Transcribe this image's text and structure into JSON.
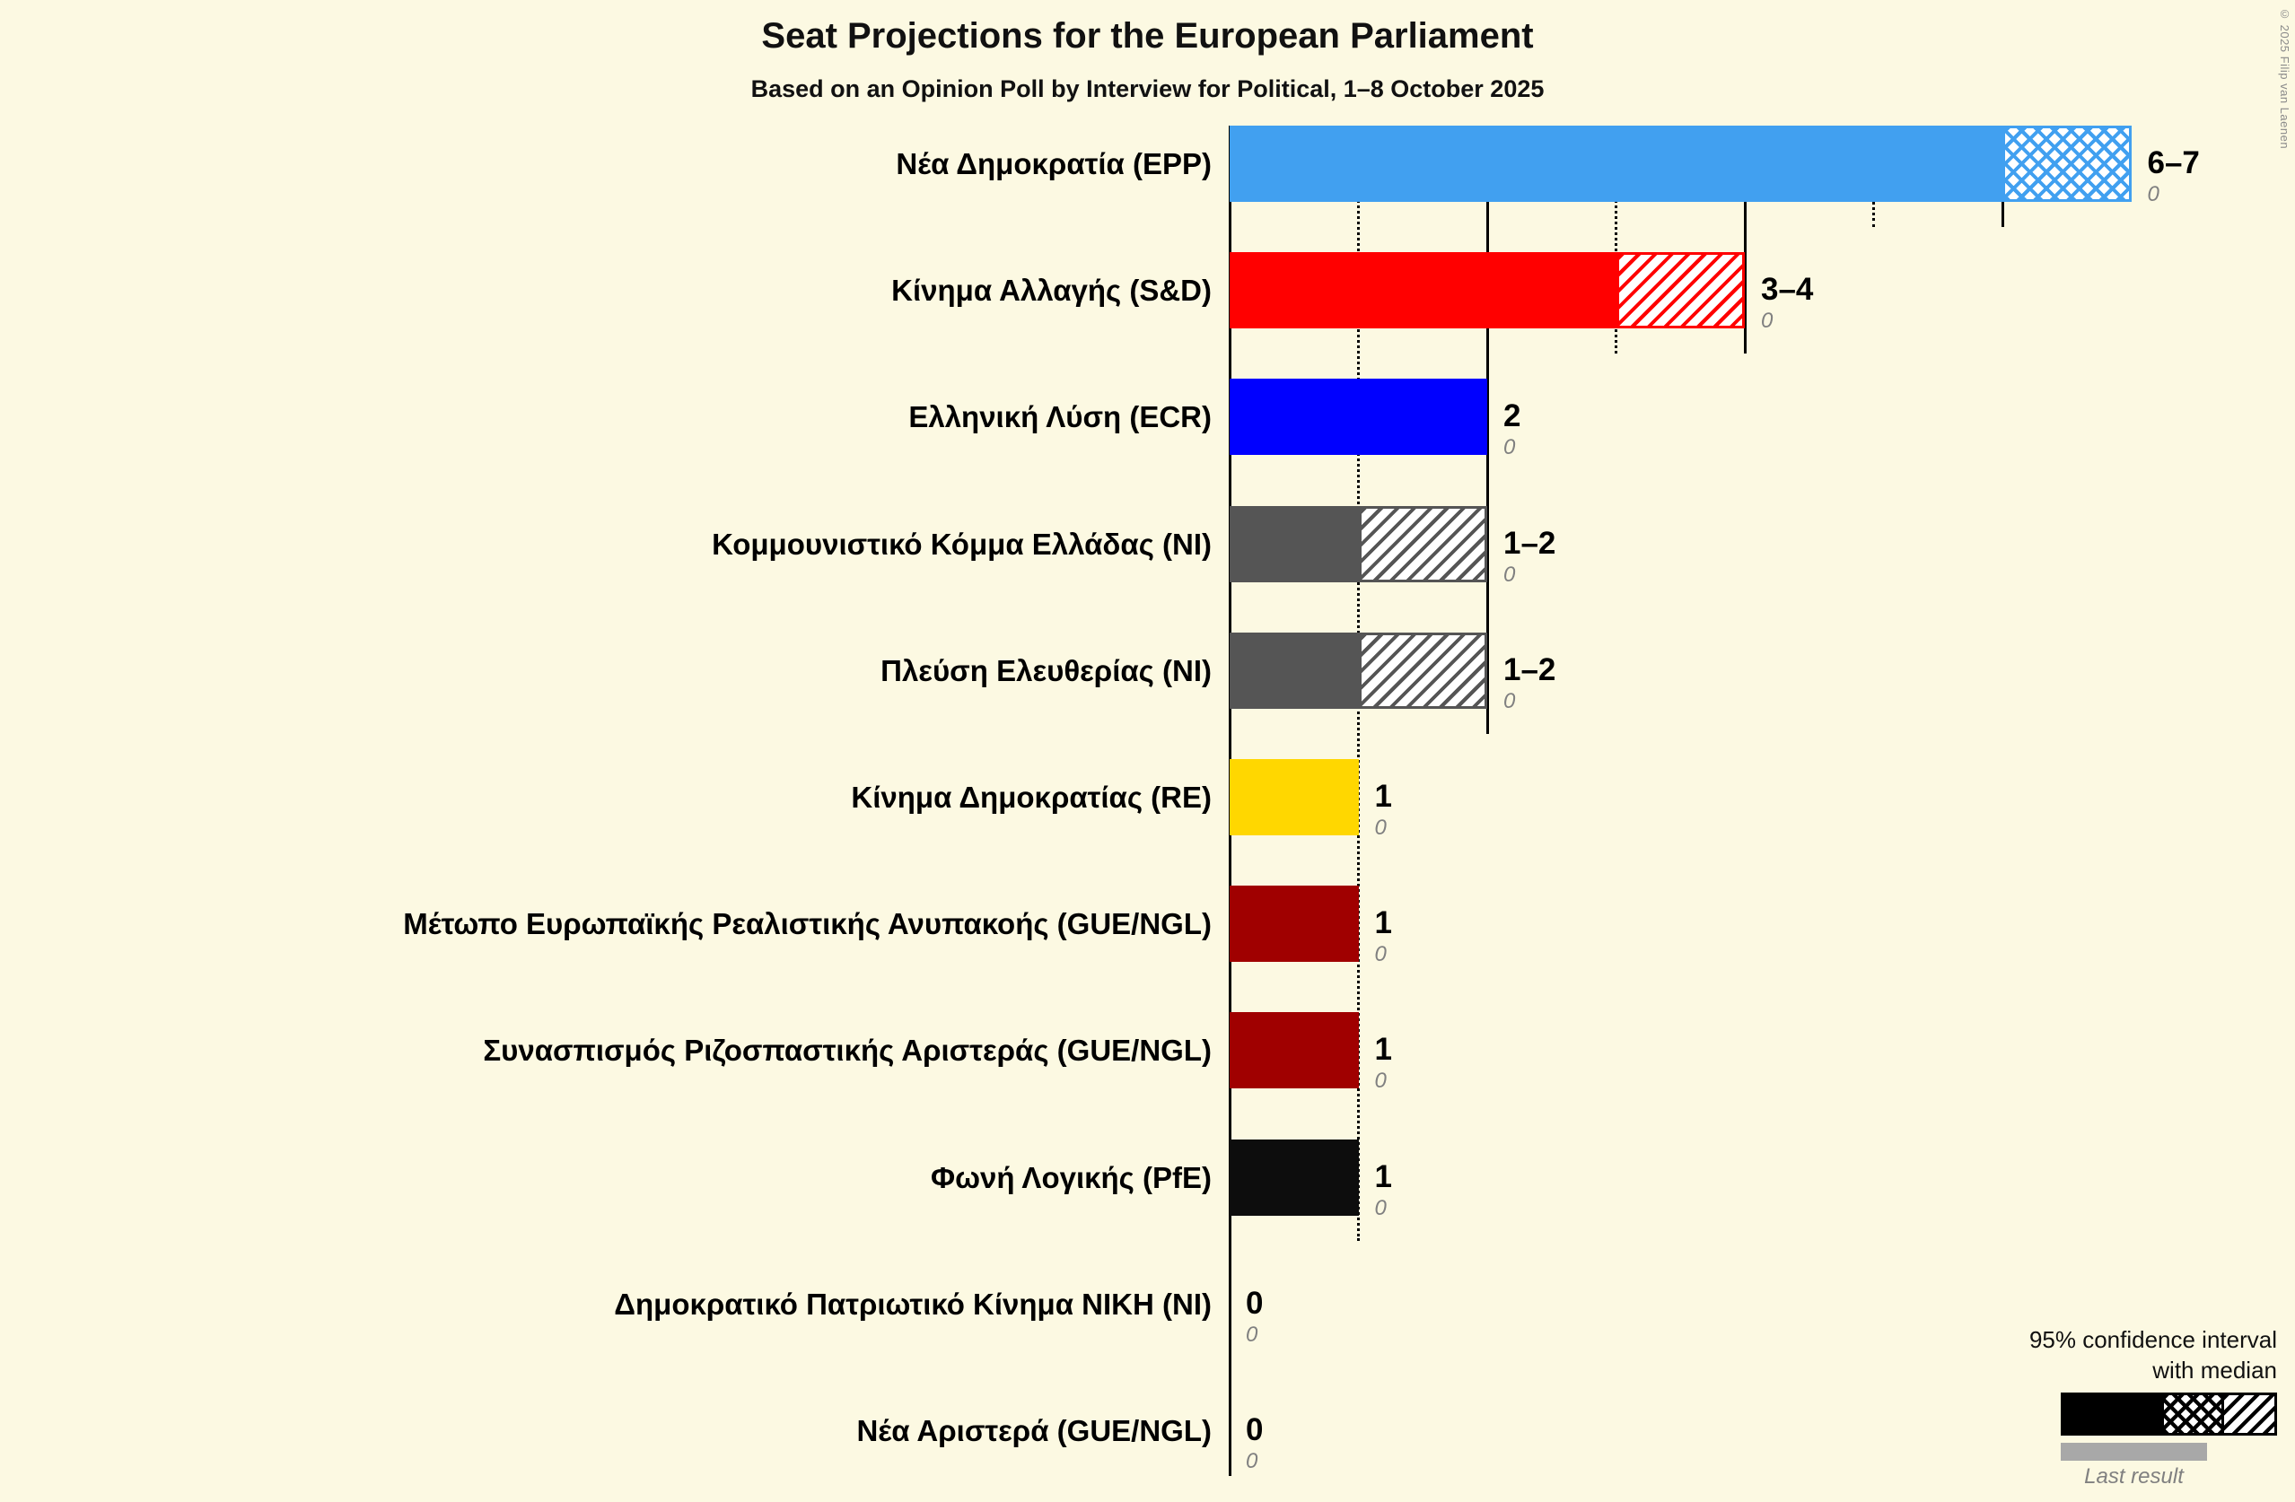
{
  "header": {
    "title": "Seat Projections for the European Parliament",
    "subtitle": "Based on an Opinion Poll by Interview for Political, 1–8 October 2025",
    "copyright": "© 2025 Filip van Laenen"
  },
  "legend": {
    "ci_line1": "95% confidence interval",
    "ci_line2": "with median",
    "last_result": "Last result"
  },
  "chart_data": {
    "type": "bar",
    "orientation": "horizontal",
    "title": "Seat Projections for the European Parliament",
    "x_unit": "seats",
    "x_range": [
      0,
      7
    ],
    "gridlines": {
      "dotted_at": [
        1,
        3,
        5
      ],
      "solid_at": [
        2,
        4,
        6
      ]
    },
    "parties": [
      {
        "name": "Νέα Δημοκρατία (EPP)",
        "color": "#41A0F0",
        "ci_low": 6,
        "median": 7,
        "ci_high": 7,
        "seats_label": "6–7",
        "last_result": "0"
      },
      {
        "name": "Κίνημα Αλλαγής (S&D)",
        "color": "#FF0000",
        "ci_low": 3,
        "median": 3,
        "ci_high": 4,
        "seats_label": "3–4",
        "last_result": "0"
      },
      {
        "name": "Ελληνική Λύση (ECR)",
        "color": "#0000FF",
        "ci_low": 2,
        "median": 2,
        "ci_high": 2,
        "seats_label": "2",
        "last_result": "0"
      },
      {
        "name": "Κομμουνιστικό Κόμμα Ελλάδας (NI)",
        "color": "#555555",
        "ci_low": 1,
        "median": 1,
        "ci_high": 2,
        "seats_label": "1–2",
        "last_result": "0"
      },
      {
        "name": "Πλεύση Ελευθερίας (NI)",
        "color": "#555555",
        "ci_low": 1,
        "median": 1,
        "ci_high": 2,
        "seats_label": "1–2",
        "last_result": "0"
      },
      {
        "name": "Κίνημα Δημοκρατίας (RE)",
        "color": "#FFD700",
        "ci_low": 1,
        "median": 1,
        "ci_high": 1,
        "seats_label": "1",
        "last_result": "0"
      },
      {
        "name": "Μέτωπο Ευρωπαϊκής Ρεαλιστικής Ανυπακοής (GUE/NGL)",
        "color": "#A00000",
        "ci_low": 1,
        "median": 1,
        "ci_high": 1,
        "seats_label": "1",
        "last_result": "0"
      },
      {
        "name": "Συνασπισμός Ριζοσπαστικής Αριστεράς (GUE/NGL)",
        "color": "#A00000",
        "ci_low": 1,
        "median": 1,
        "ci_high": 1,
        "seats_label": "1",
        "last_result": "0"
      },
      {
        "name": "Φωνή Λογικής (PfE)",
        "color": "#0D0D0D",
        "ci_low": 1,
        "median": 1,
        "ci_high": 1,
        "seats_label": "1",
        "last_result": "0"
      },
      {
        "name": "Δημοκρατικό Πατριωτικό Κίνημα ΝΙΚΗ (NI)",
        "color": null,
        "ci_low": 0,
        "median": 0,
        "ci_high": 0,
        "seats_label": "0",
        "last_result": "0"
      },
      {
        "name": "Νέα Αριστερά (GUE/NGL)",
        "color": null,
        "ci_low": 0,
        "median": 0,
        "ci_high": 0,
        "seats_label": "0",
        "last_result": "0"
      }
    ]
  }
}
